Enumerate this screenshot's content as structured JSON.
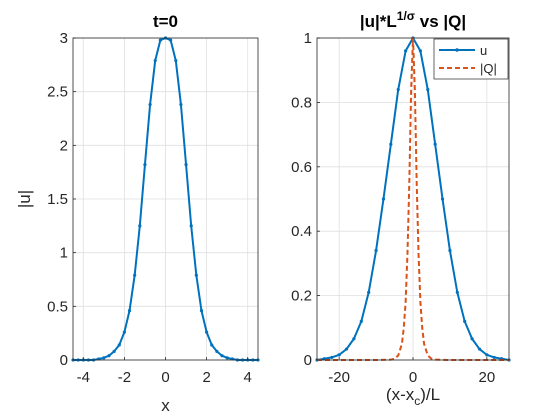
{
  "colors": {
    "u": "#0072BD",
    "Q": "#D95319",
    "grid": "#dfdfdf",
    "axis": "#262626"
  },
  "chart_data": [
    {
      "type": "line",
      "title": "t=0",
      "xlabel": "x",
      "ylabel": "|u|",
      "xlim": [
        -4.5,
        4.5
      ],
      "ylim": [
        0,
        3
      ],
      "grid": true,
      "x_ticks": [
        "-4",
        "-2",
        "0",
        "2",
        "4"
      ],
      "y_ticks": [
        "0",
        "0.5",
        "1",
        "1.5",
        "2",
        "2.5",
        "3"
      ],
      "series": [
        {
          "name": "",
          "style": "solid-with-point-markers",
          "x": [
            -4.5,
            -4.25,
            -4.0,
            -3.75,
            -3.5,
            -3.25,
            -3.0,
            -2.75,
            -2.5,
            -2.25,
            -2.0,
            -1.75,
            -1.5,
            -1.25,
            -1.0,
            -0.75,
            -0.5,
            -0.25,
            0.0,
            0.25,
            0.5,
            0.75,
            1.0,
            1.25,
            1.5,
            1.75,
            2.0,
            2.25,
            2.5,
            2.75,
            3.0,
            3.25,
            3.5,
            3.75,
            4.0,
            4.25,
            4.5
          ],
          "y": [
            0.0,
            0.0,
            0.0,
            0.0,
            0.0,
            0.01,
            0.02,
            0.04,
            0.08,
            0.14,
            0.26,
            0.46,
            0.79,
            1.25,
            1.82,
            2.38,
            2.79,
            2.98,
            3.0,
            2.98,
            2.79,
            2.38,
            1.82,
            1.25,
            0.79,
            0.46,
            0.26,
            0.14,
            0.08,
            0.04,
            0.02,
            0.01,
            0.0,
            0.0,
            0.0,
            0.0,
            0.0
          ]
        }
      ]
    },
    {
      "type": "line",
      "title_parts": {
        "main": "|u|*L",
        "sup": "1/σ",
        "tail": " vs |Q|"
      },
      "xlabel_parts": {
        "main": "(x-x",
        "sub": "c",
        "tail": ")/L"
      },
      "ylabel": "",
      "xlim": [
        -26,
        26
      ],
      "ylim": [
        0,
        1
      ],
      "grid": true,
      "legend_position": "top-right",
      "x_ticks": [
        "-20",
        "0",
        "20"
      ],
      "y_ticks": [
        "0",
        "0.2",
        "0.4",
        "0.6",
        "0.8",
        "1"
      ],
      "series": [
        {
          "name": "u",
          "style": "solid-with-point-markers",
          "x": [
            -26,
            -24,
            -22,
            -20,
            -18,
            -16,
            -14,
            -12,
            -10,
            -8,
            -6,
            -4,
            -2,
            0,
            2,
            4,
            6,
            8,
            10,
            12,
            14,
            16,
            18,
            20,
            22,
            24,
            26
          ],
          "y": [
            0.0,
            0.004,
            0.008,
            0.016,
            0.034,
            0.066,
            0.12,
            0.21,
            0.34,
            0.5,
            0.67,
            0.84,
            0.96,
            1.0,
            0.96,
            0.84,
            0.67,
            0.5,
            0.34,
            0.21,
            0.12,
            0.066,
            0.034,
            0.016,
            0.008,
            0.004,
            0.0
          ]
        },
        {
          "name": "|Q|",
          "style": "dashed",
          "x": [
            -26,
            -10,
            -6,
            -5,
            -4,
            -3,
            -2.5,
            -2,
            -1.5,
            -1,
            -0.5,
            0,
            0.5,
            1,
            1.5,
            2,
            2.5,
            3,
            4,
            5,
            6,
            10,
            26
          ],
          "y": [
            0.0,
            0.0,
            0.001,
            0.004,
            0.014,
            0.05,
            0.1,
            0.18,
            0.33,
            0.55,
            0.84,
            1.0,
            0.84,
            0.55,
            0.33,
            0.18,
            0.1,
            0.05,
            0.014,
            0.004,
            0.001,
            0.0,
            0.0
          ]
        }
      ]
    }
  ]
}
